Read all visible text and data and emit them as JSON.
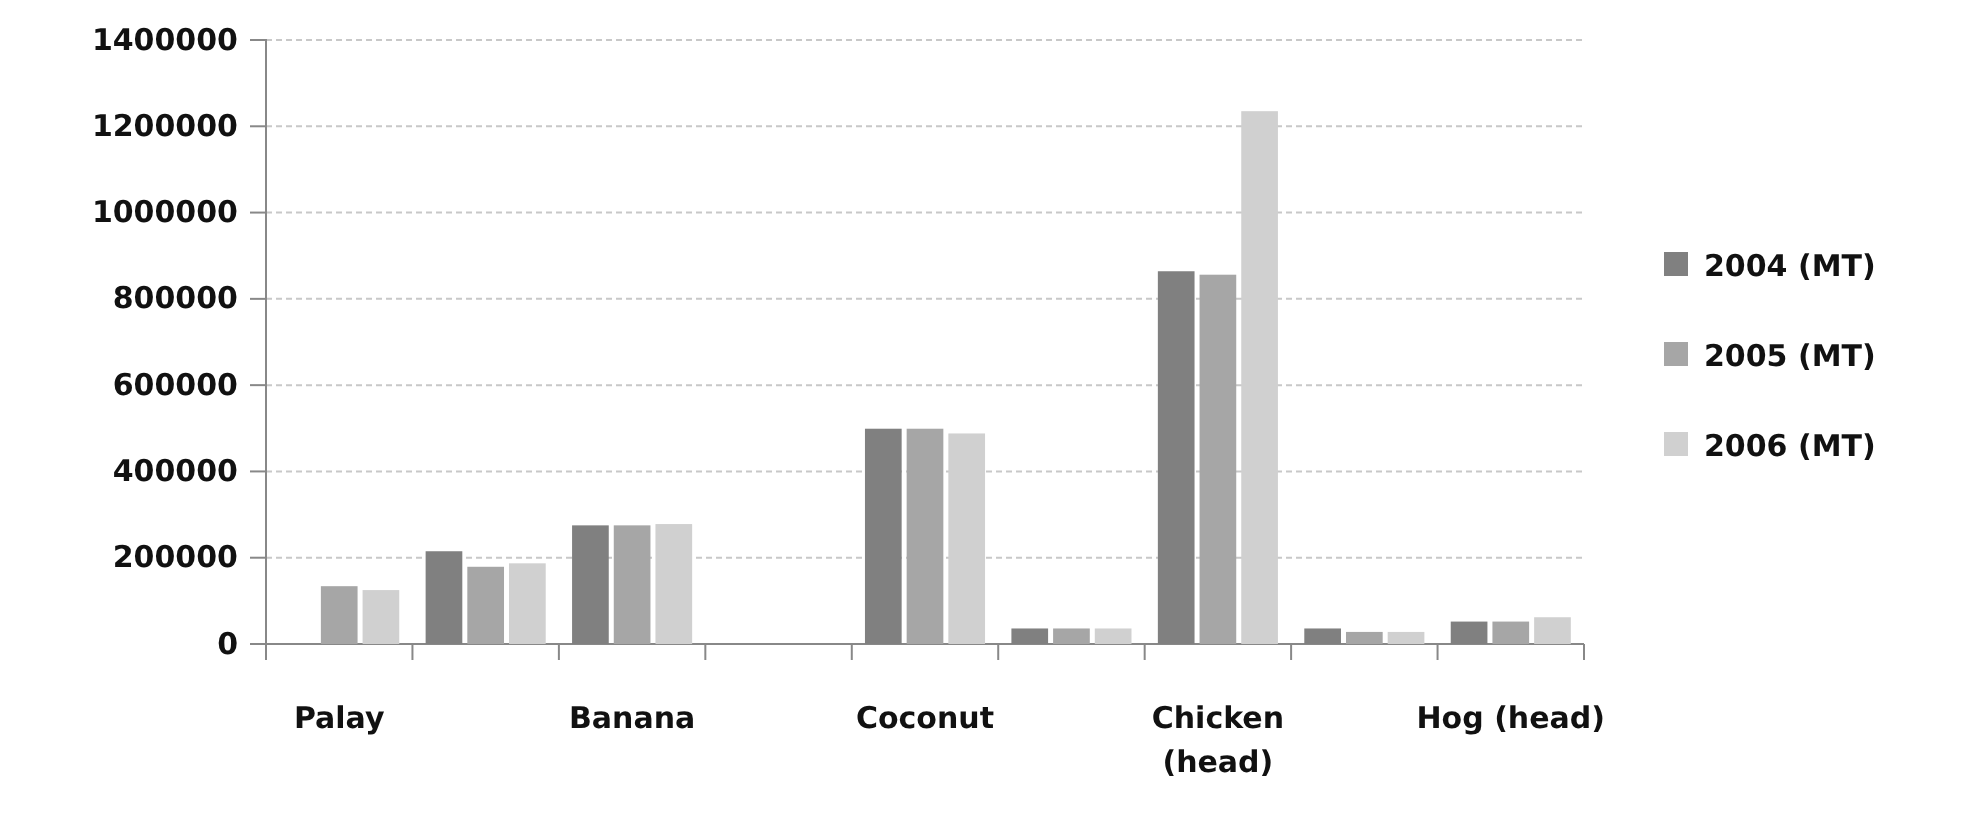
{
  "chart_data": {
    "type": "bar",
    "categories": [
      "Palay",
      null,
      "Banana",
      null,
      "Coconut",
      null,
      "Chicken (head)",
      null,
      "Hog (head)"
    ],
    "series": [
      {
        "name": "2004 (MT)",
        "color": "#808080",
        "values": [
          null,
          215000,
          275000,
          0,
          499000,
          36000,
          864000,
          36000,
          52000
        ]
      },
      {
        "name": "2005 (MT)",
        "color": "#a6a6a6",
        "values": [
          134000,
          179000,
          275000,
          0,
          499000,
          36000,
          856000,
          28000,
          52000
        ]
      },
      {
        "name": "2006 (MT)",
        "color": "#d0d0d0",
        "values": [
          125000,
          187000,
          278000,
          0,
          488000,
          36000,
          1235000,
          28000,
          62000
        ]
      }
    ],
    "ylim": [
      0,
      1400000
    ],
    "yticks": [
      0,
      200000,
      400000,
      600000,
      800000,
      1000000,
      1200000,
      1400000
    ],
    "grid": "y",
    "legend": "right"
  }
}
